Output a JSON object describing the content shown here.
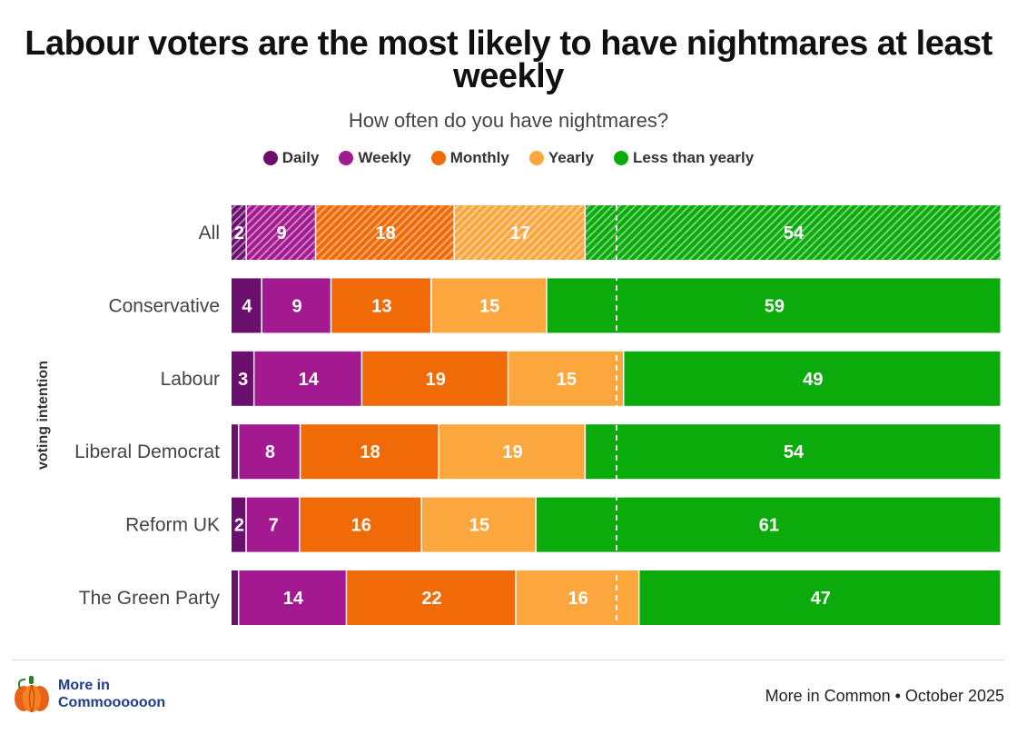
{
  "chart_data": {
    "type": "bar",
    "orientation": "horizontal",
    "stacked": true,
    "title": "Labour voters are the most likely to have nightmares at least weekly",
    "subtitle": "How often do you have nightmares?",
    "ylabel": "voting intention",
    "xlim": [
      0,
      100
    ],
    "reference_line": 50,
    "categories": [
      "All",
      "Conservative",
      "Labour",
      "Liberal Democrat",
      "Reform UK",
      "The Green Party"
    ],
    "hatched_categories": [
      "All"
    ],
    "series": [
      {
        "name": "Daily",
        "color": "#6b0f6e",
        "values": [
          2,
          4,
          3,
          1,
          2,
          1
        ],
        "labels": [
          "2",
          "4",
          "3",
          "",
          "2",
          ""
        ]
      },
      {
        "name": "Weekly",
        "color": "#a3198f",
        "values": [
          9,
          9,
          14,
          8,
          7,
          14
        ],
        "labels": [
          "9",
          "9",
          "14",
          "8",
          "7",
          "14"
        ]
      },
      {
        "name": "Monthly",
        "color": "#f06a08",
        "values": [
          18,
          13,
          19,
          18,
          16,
          22
        ],
        "labels": [
          "18",
          "13",
          "19",
          "18",
          "16",
          "22"
        ]
      },
      {
        "name": "Yearly",
        "color": "#fca63e",
        "values": [
          17,
          15,
          15,
          19,
          15,
          16
        ],
        "labels": [
          "17",
          "15",
          "15",
          "19",
          "15",
          "16"
        ]
      },
      {
        "name": "Less than yearly",
        "color": "#0aab0a",
        "values": [
          54,
          59,
          49,
          54,
          61,
          47
        ],
        "labels": [
          "54",
          "59",
          "49",
          "54",
          "61",
          "47"
        ]
      }
    ]
  },
  "footer": {
    "logo_line1": "More in",
    "logo_line2": "Commoooooon",
    "source": "More in Common • October 2025"
  }
}
